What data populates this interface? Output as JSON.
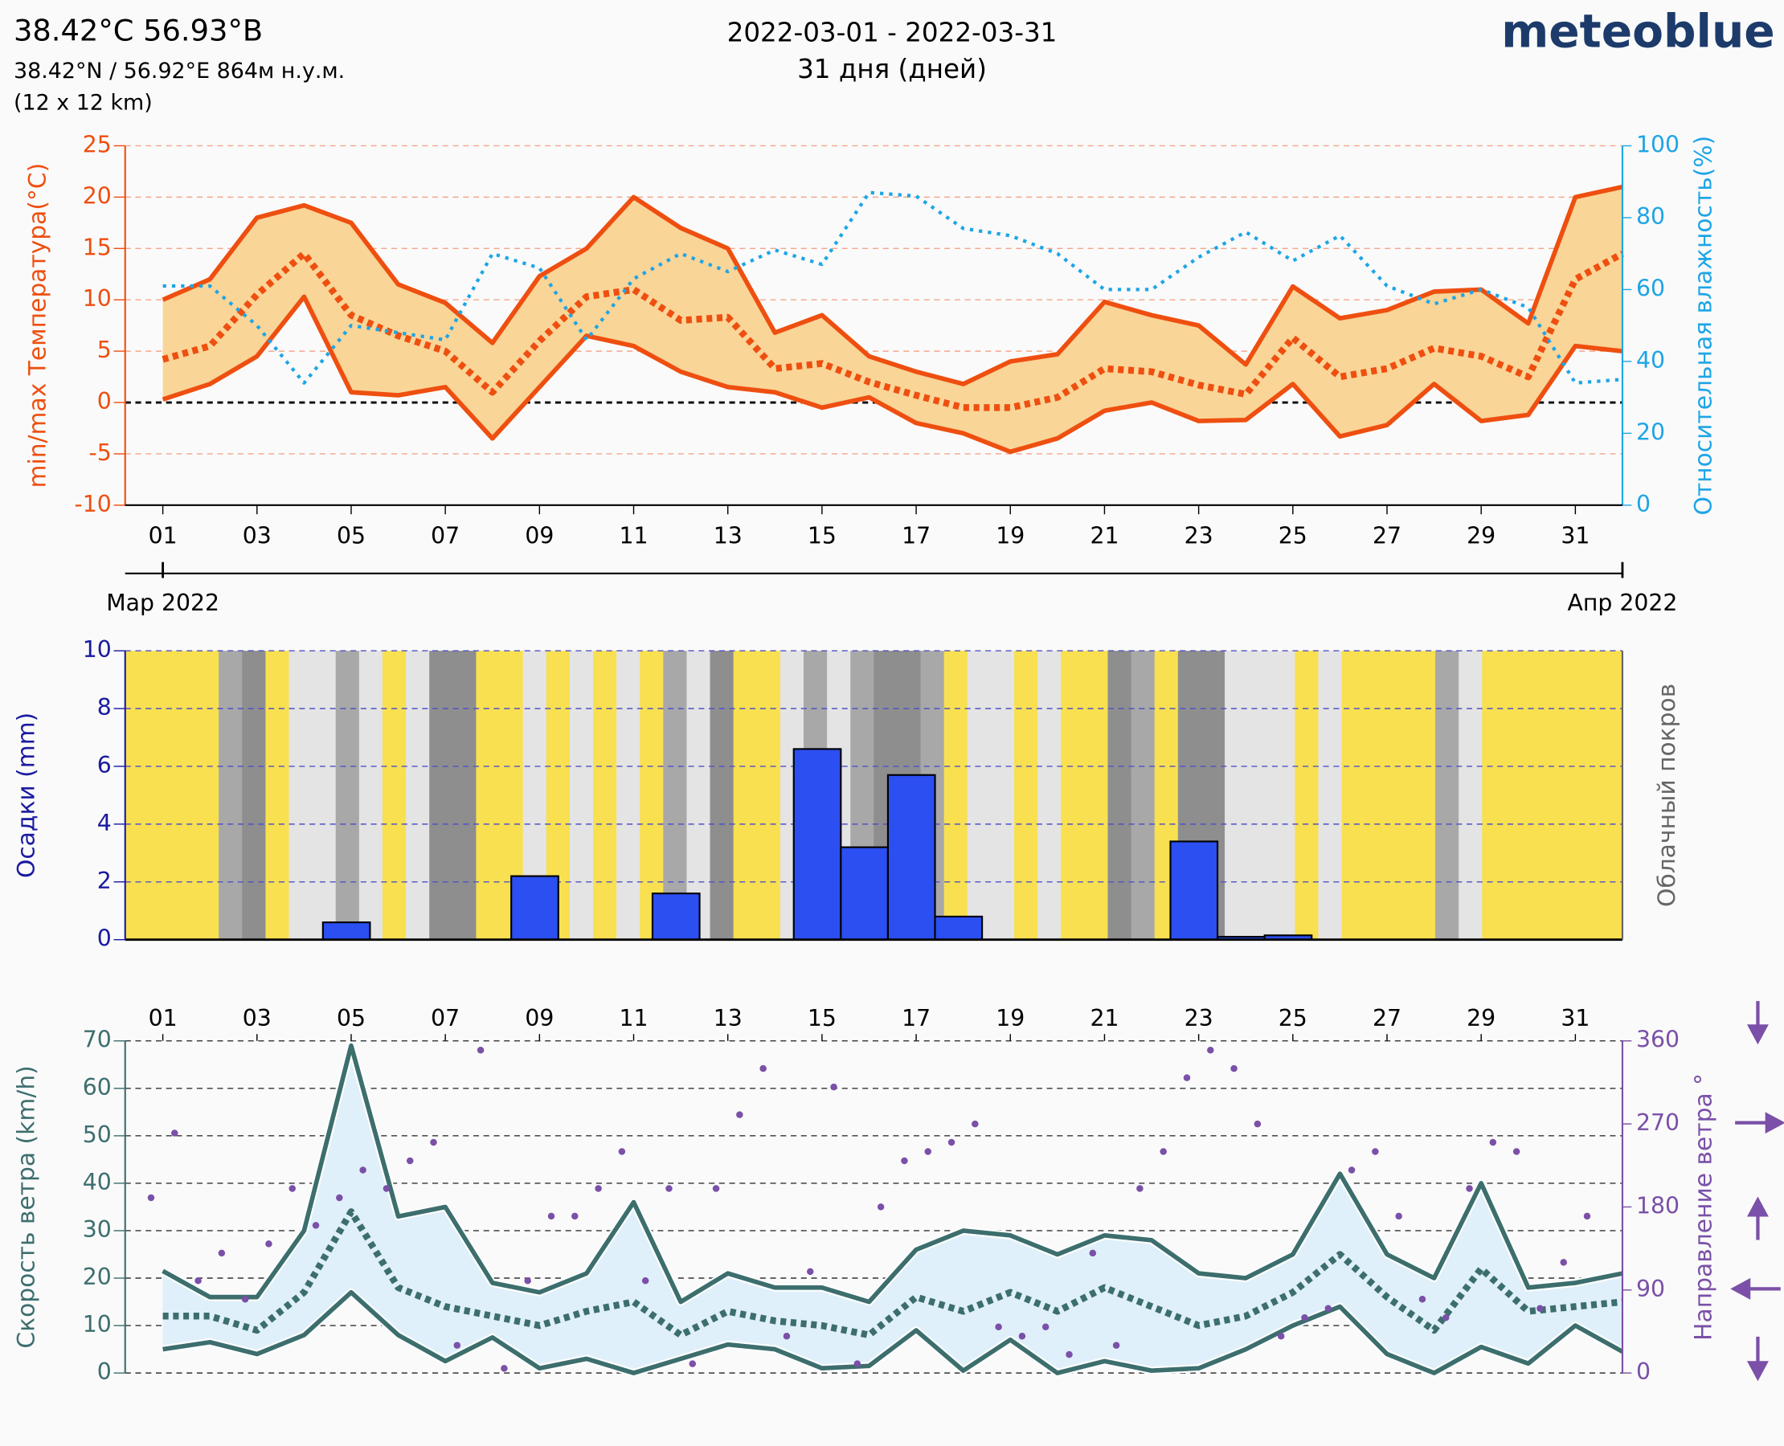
{
  "header": {
    "title": "38.42°C 56.93°B",
    "coords": "38.42°N / 56.92°E   864м н.у.м.",
    "grid": "(12 x 12 km)",
    "period": "2022-03-01 - 2022-03-31",
    "days": "31 дня (дней)",
    "logo": "meteoblue"
  },
  "chart_data": [
    {
      "type": "line",
      "ylabel": "min/max Температура(°C)",
      "y2label": "Относительная влажность(%)",
      "x": [
        1,
        2,
        3,
        4,
        5,
        6,
        7,
        8,
        9,
        10,
        11,
        12,
        13,
        14,
        15,
        16,
        17,
        18,
        19,
        20,
        21,
        22,
        23,
        24,
        25,
        26,
        27,
        28,
        29,
        30,
        31,
        32
      ],
      "xlim": [
        0.2,
        32
      ],
      "xticks": [
        {
          "value": 1,
          "label": "01"
        },
        {
          "value": 3,
          "label": "03"
        },
        {
          "value": 5,
          "label": "05"
        },
        {
          "value": 7,
          "label": "07"
        },
        {
          "value": 9,
          "label": "09"
        },
        {
          "value": 11,
          "label": "11"
        },
        {
          "value": 13,
          "label": "13"
        },
        {
          "value": 15,
          "label": "15"
        },
        {
          "value": 17,
          "label": "17"
        },
        {
          "value": 19,
          "label": "19"
        },
        {
          "value": 21,
          "label": "21"
        },
        {
          "value": 23,
          "label": "23"
        },
        {
          "value": 25,
          "label": "25"
        },
        {
          "value": 27,
          "label": "27"
        },
        {
          "value": 29,
          "label": "29"
        },
        {
          "value": 31,
          "label": "31"
        }
      ],
      "months": [
        {
          "value": 1,
          "label": "Мар 2022"
        },
        {
          "value": 32,
          "label": "Апр 2022"
        }
      ],
      "ylim": [
        -10,
        25
      ],
      "yticks": [
        -10,
        -5,
        0,
        5,
        10,
        15,
        20,
        25
      ],
      "y2lim": [
        0,
        100
      ],
      "y2ticks": [
        0,
        20,
        40,
        60,
        80,
        100
      ],
      "grid": true,
      "fill": "#f9d597",
      "series": [
        {
          "color": "#ee4f10",
          "style": "solid",
          "values": [
            10,
            12,
            18,
            19.2,
            17.5,
            11.5,
            9.7,
            5.8,
            12.3,
            15,
            20,
            17,
            15,
            6.8,
            8.5,
            4.5,
            3,
            1.8,
            4,
            4.7,
            9.8,
            8.5,
            7.5,
            3.7,
            11.3,
            8.2,
            9,
            10.8,
            11,
            7.7,
            20,
            21
          ]
        },
        {
          "color": "#ee4f10",
          "style": "dotted",
          "values": [
            4.2,
            5.5,
            10.5,
            14.5,
            8.5,
            6.5,
            5,
            1,
            6,
            10.3,
            11,
            8,
            8.3,
            3.3,
            3.8,
            2,
            0.7,
            -0.5,
            -0.5,
            0.5,
            3.3,
            3,
            1.7,
            0.8,
            6.3,
            2.5,
            3.3,
            5.3,
            4.5,
            2.5,
            12,
            14.5
          ]
        },
        {
          "color": "#ee4f10",
          "style": "solid",
          "values": [
            0.3,
            1.8,
            4.5,
            10.3,
            1,
            0.7,
            1.5,
            -3.5,
            1.5,
            6.5,
            5.5,
            3,
            1.5,
            1,
            -0.5,
            0.5,
            -2,
            -3,
            -4.8,
            -3.5,
            -0.8,
            0,
            -1.8,
            -1.7,
            1.8,
            -3.3,
            -2.2,
            1.8,
            -1.8,
            -1.2,
            5.5,
            5
          ]
        },
        {
          "color": "#1ea5e6",
          "style": "fine",
          "axis": "y2",
          "values": [
            61,
            61,
            50,
            34,
            50,
            48,
            46,
            70,
            66,
            46,
            63,
            70,
            65,
            71,
            67,
            87,
            86,
            77,
            75,
            70,
            60,
            60,
            69,
            76,
            68,
            75,
            61,
            56,
            60,
            55,
            34,
            35
          ]
        }
      ]
    },
    {
      "type": "histogram",
      "ylabel": "Осадки (mm)",
      "y2label": "Облачный покров",
      "xlim": [
        0.2,
        32
      ],
      "bins": [
        0.4,
        1.4,
        2.4,
        3.4,
        4.4,
        5.4,
        6.4,
        7.4,
        8.4,
        9.4,
        10.4,
        11.4,
        12.4,
        13.4,
        14.4,
        15.4,
        16.4,
        17.4,
        18.4,
        19.4,
        20.4,
        21.4,
        22.4,
        23.4,
        24.4,
        25.4,
        26.4,
        27.4,
        28.4,
        29.4,
        30.4,
        31.4
      ],
      "values": [
        0,
        0,
        0,
        0,
        0.6,
        0,
        0,
        0,
        2.2,
        0,
        0,
        1.6,
        0,
        0,
        6.6,
        3.2,
        5.7,
        0.8,
        0,
        0,
        0,
        0,
        3.4,
        0.1,
        0.15,
        0,
        0,
        0,
        0,
        0,
        0
      ],
      "color": "#2b4ff0",
      "ylim": [
        0,
        10
      ],
      "yticks": [
        0,
        2,
        4,
        6,
        8,
        10
      ],
      "grid": true,
      "cloud_cover": [
        10,
        10,
        10,
        10,
        70,
        95,
        10,
        30,
        40,
        70,
        40,
        20,
        40,
        95,
        90,
        10,
        10,
        40,
        10,
        40,
        10,
        40,
        10,
        70,
        40,
        95,
        10,
        10,
        40,
        70,
        40,
        70,
        95,
        95,
        70,
        10,
        40,
        40,
        10,
        40,
        10,
        10,
        95,
        70,
        10,
        95,
        95,
        40,
        40,
        40,
        10,
        40,
        10,
        10,
        10,
        10,
        70,
        40,
        10,
        10,
        10,
        10,
        10,
        10
      ]
    },
    {
      "type": "line",
      "ylabel": "Скорость ветра (km/h)",
      "y2label": "Направление ветра °",
      "x": [
        1,
        2,
        3,
        4,
        5,
        6,
        7,
        8,
        9,
        10,
        11,
        12,
        13,
        14,
        15,
        16,
        17,
        18,
        19,
        20,
        21,
        22,
        23,
        24,
        25,
        26,
        27,
        28,
        29,
        30,
        31,
        32
      ],
      "xlim": [
        0.2,
        32
      ],
      "xticks": [
        {
          "value": 1,
          "label": "01"
        },
        {
          "value": 3,
          "label": "03"
        },
        {
          "value": 5,
          "label": "05"
        },
        {
          "value": 7,
          "label": "07"
        },
        {
          "value": 9,
          "label": "09"
        },
        {
          "value": 11,
          "label": "11"
        },
        {
          "value": 13,
          "label": "13"
        },
        {
          "value": 15,
          "label": "15"
        },
        {
          "value": 17,
          "label": "17"
        },
        {
          "value": 19,
          "label": "19"
        },
        {
          "value": 21,
          "label": "21"
        },
        {
          "value": 23,
          "label": "23"
        },
        {
          "value": 25,
          "label": "25"
        },
        {
          "value": 27,
          "label": "27"
        },
        {
          "value": 29,
          "label": "29"
        },
        {
          "value": 31,
          "label": "31"
        }
      ],
      "ylim": [
        0,
        70
      ],
      "yticks": [
        0,
        10,
        20,
        30,
        40,
        50,
        60,
        70
      ],
      "y2lim": [
        0,
        360
      ],
      "y2ticks": [
        0,
        90,
        180,
        270,
        360
      ],
      "grid": true,
      "fill": "#dff0fa",
      "series": [
        {
          "color": "#3d6e6e",
          "style": "solid",
          "values": [
            21.5,
            16,
            16,
            30,
            69,
            33,
            35,
            19,
            17,
            21,
            36,
            15,
            21,
            18,
            18,
            15,
            26,
            30,
            29,
            25,
            29,
            28,
            21,
            20,
            25,
            42,
            25,
            20,
            40,
            18,
            19,
            21
          ]
        },
        {
          "color": "#3d6e6e",
          "style": "dotted",
          "values": [
            12,
            12,
            9,
            17,
            34,
            18,
            14,
            12,
            10,
            13,
            15,
            8,
            13,
            11,
            10,
            8,
            16,
            13,
            17,
            13,
            18,
            14,
            10,
            12,
            17,
            25,
            16,
            9,
            22,
            13,
            14,
            15
          ]
        },
        {
          "color": "#3d6e6e",
          "style": "solid",
          "values": [
            5,
            6.5,
            4,
            8,
            17,
            8,
            2.5,
            7.5,
            1,
            3,
            0,
            3,
            6,
            5,
            1,
            1.5,
            9,
            0.5,
            7,
            0,
            2.5,
            0.5,
            1,
            5,
            10,
            14,
            4,
            0,
            5.5,
            2,
            10,
            4.5
          ]
        }
      ],
      "direction": {
        "color": "#7a50a8",
        "axis": "y2",
        "x": [
          0.75,
          1.25,
          1.75,
          2.25,
          2.75,
          3.25,
          3.75,
          4.25,
          4.75,
          5.25,
          5.75,
          6.25,
          6.75,
          7.25,
          7.75,
          8.25,
          8.75,
          9.25,
          9.75,
          10.25,
          10.75,
          11.25,
          11.75,
          12.25,
          12.75,
          13.25,
          13.75,
          14.25,
          14.75,
          15.25,
          15.75,
          16.25,
          16.75,
          17.25,
          17.75,
          18.25,
          18.75,
          19.25,
          19.75,
          20.25,
          20.75,
          21.25,
          21.75,
          22.25,
          22.75,
          23.25,
          23.75,
          24.25,
          24.75,
          25.25,
          25.75,
          26.25,
          26.75,
          27.25,
          27.75,
          28.25,
          28.75,
          29.25,
          29.75,
          30.25,
          30.75,
          31.25
        ],
        "values": [
          190,
          260,
          100,
          130,
          80,
          140,
          200,
          160,
          190,
          220,
          200,
          230,
          250,
          30,
          350,
          5,
          100,
          170,
          170,
          200,
          240,
          100,
          200,
          10,
          200,
          280,
          330,
          40,
          110,
          310,
          10,
          180,
          230,
          240,
          250,
          270,
          50,
          40,
          50,
          20,
          130,
          30,
          200,
          240,
          320,
          350,
          330,
          270,
          40,
          60,
          70,
          220,
          240,
          170,
          80,
          60,
          200,
          250,
          240,
          70,
          120,
          170
        ]
      }
    }
  ]
}
